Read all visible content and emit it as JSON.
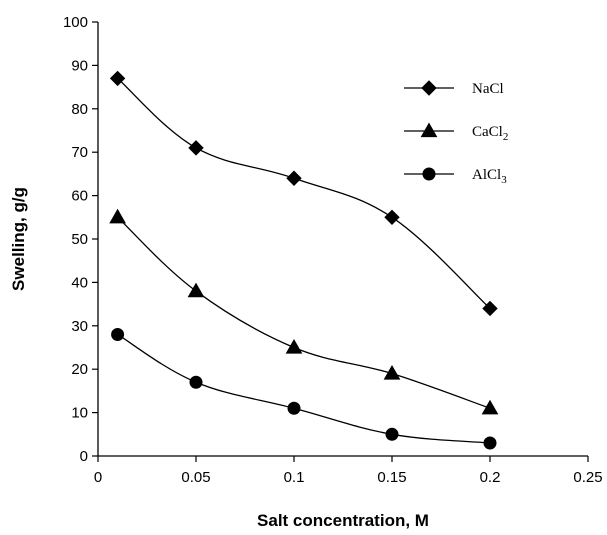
{
  "chart_data": {
    "type": "line",
    "title": "",
    "xlabel": "Salt concentration, M",
    "ylabel": "Swelling, g/g",
    "xlim": [
      0,
      0.25
    ],
    "ylim": [
      0,
      100
    ],
    "x_ticks": [
      "0",
      "0.05",
      "0.1",
      "0.15",
      "0.2",
      "0.25"
    ],
    "y_ticks": [
      "0",
      "10",
      "20",
      "30",
      "40",
      "50",
      "60",
      "70",
      "80",
      "90",
      "100"
    ],
    "grid": false,
    "legend_position": "top-right",
    "x": [
      0.01,
      0.05,
      0.1,
      0.15,
      0.2
    ],
    "series": [
      {
        "name": "NaCl",
        "marker": "diamond",
        "values": [
          87,
          71,
          64,
          55,
          34
        ]
      },
      {
        "name": "CaCl2",
        "marker": "triangle",
        "values": [
          55,
          38,
          25,
          19,
          11
        ]
      },
      {
        "name": "AlCl3",
        "marker": "circle",
        "values": [
          28,
          17,
          11,
          5,
          3
        ]
      }
    ],
    "colors": {
      "line": "#000000",
      "marker": "#000000"
    }
  }
}
